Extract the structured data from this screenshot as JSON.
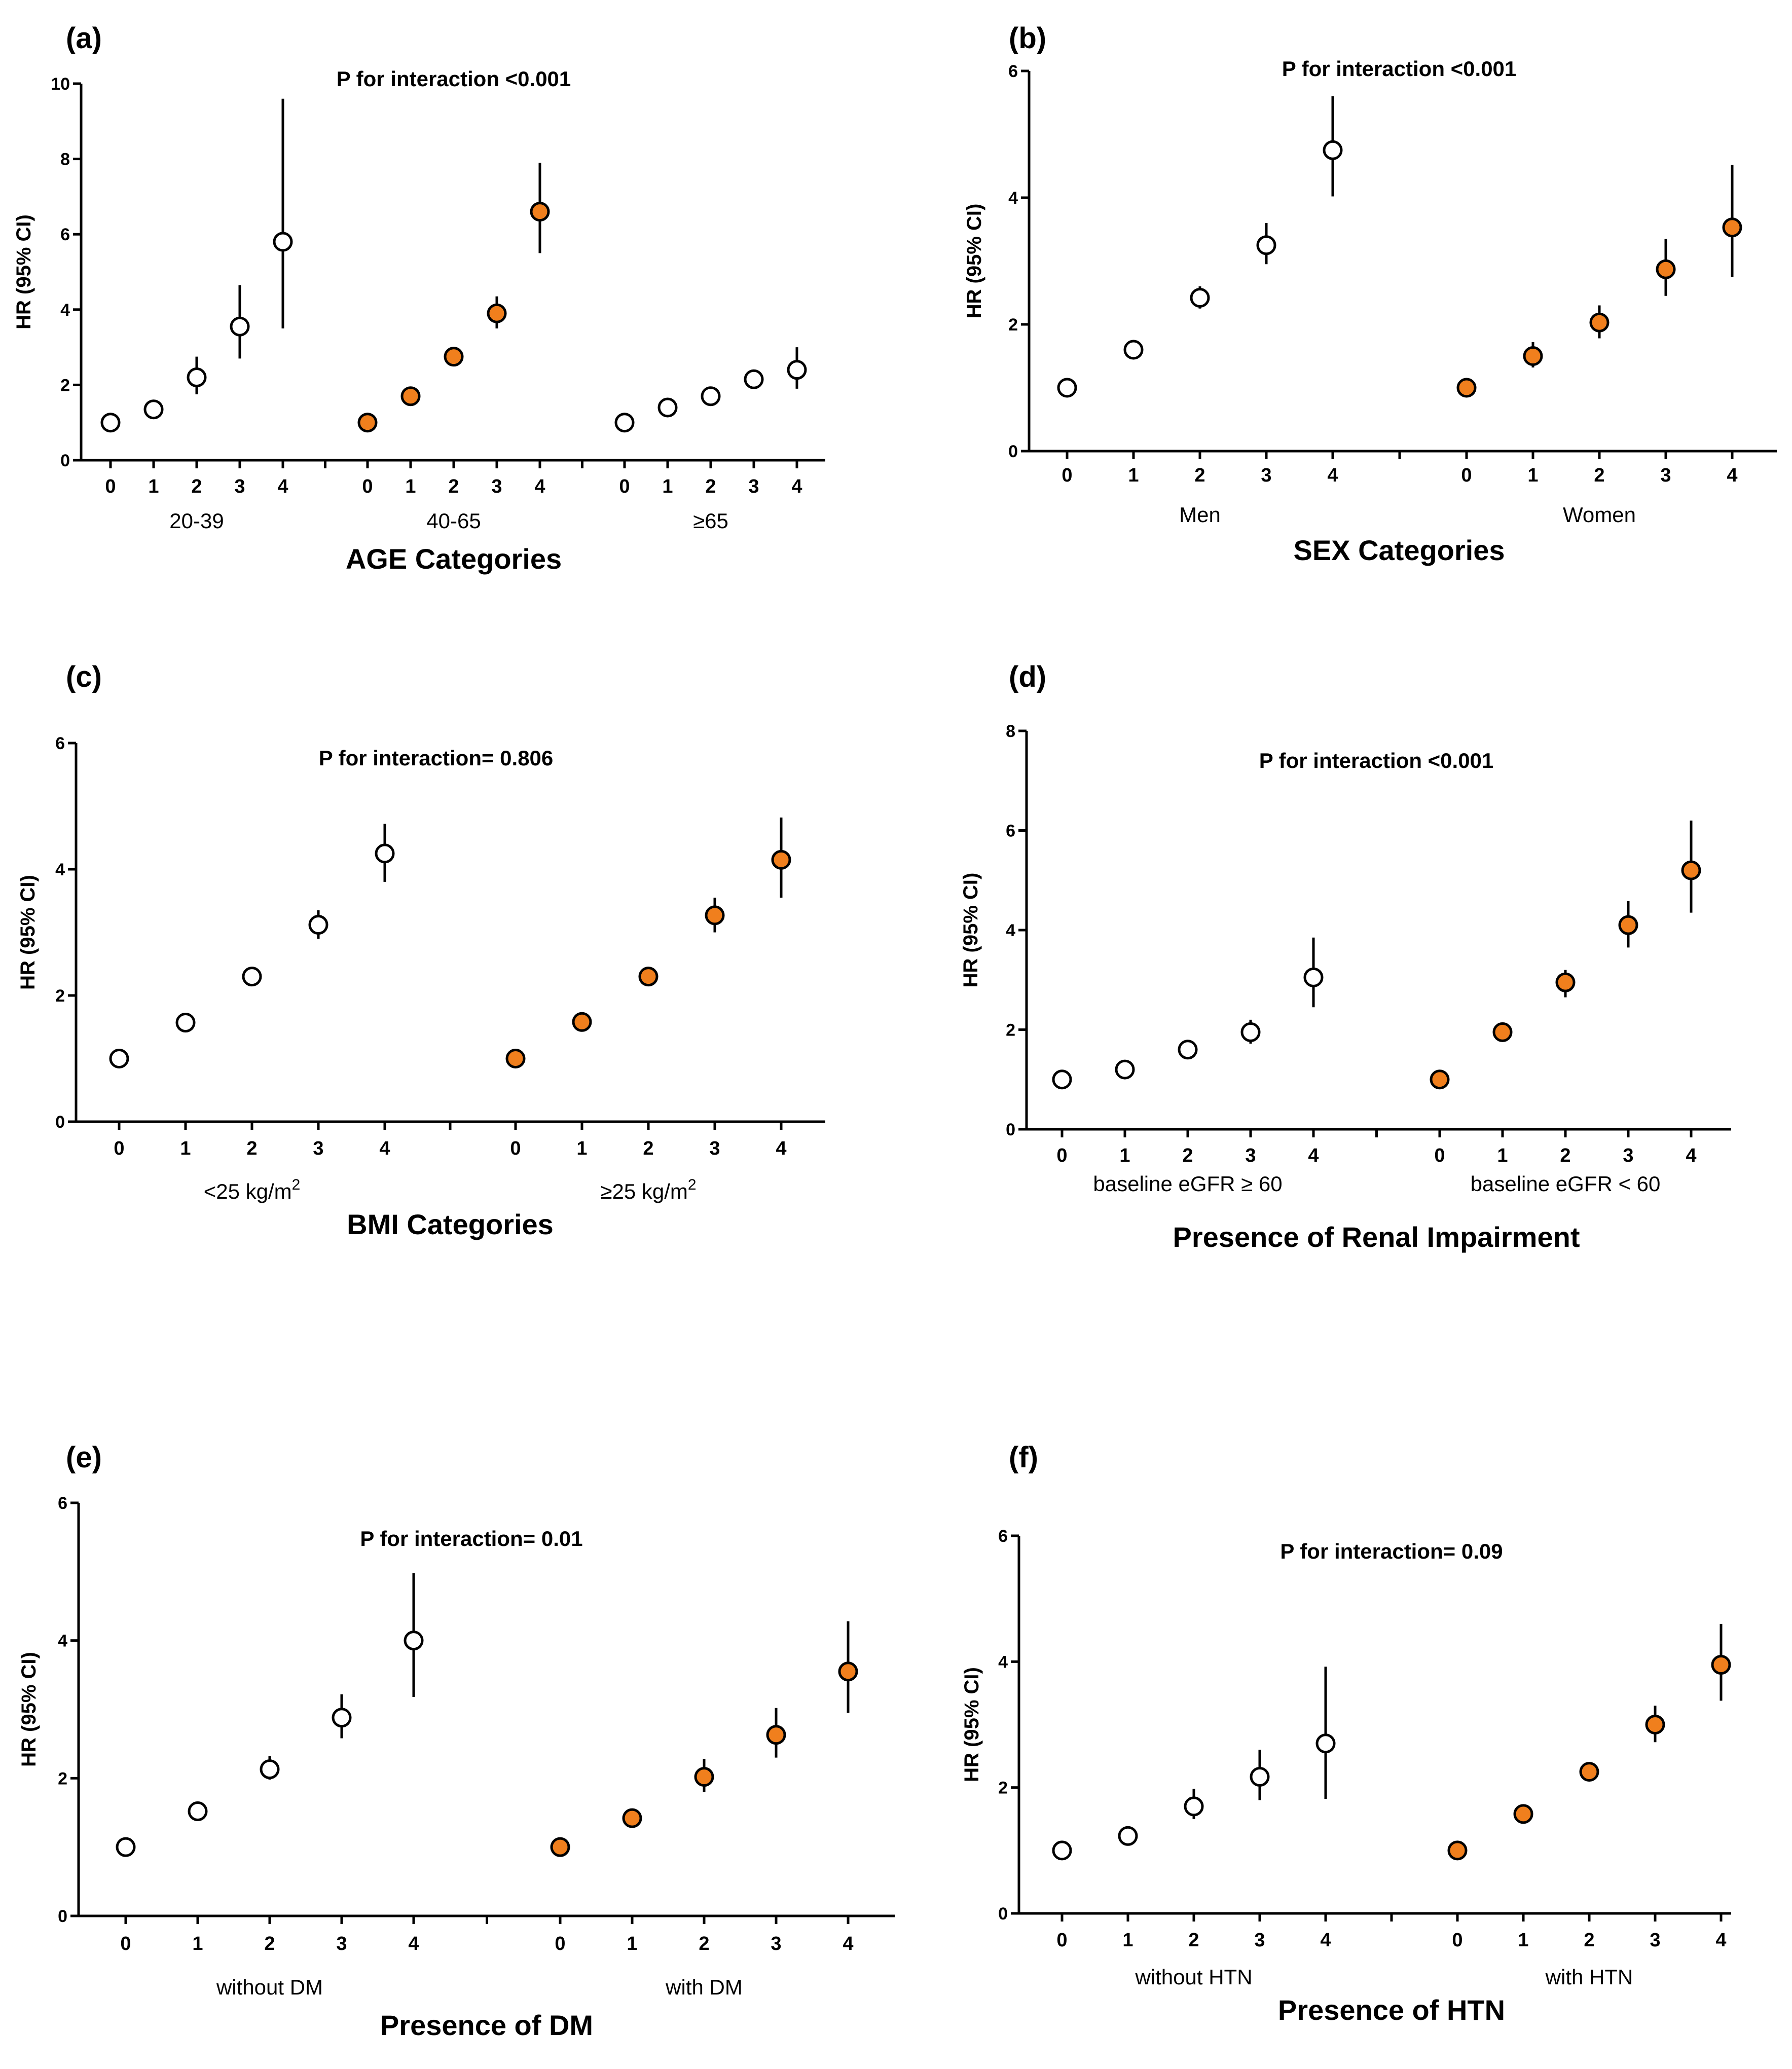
{
  "colors": {
    "filled": "#f07f1d",
    "open": "#ffffff",
    "stroke": "#000000"
  },
  "chart_data": [
    {
      "type": "scatter",
      "panel": "(a)",
      "annotation": "P for interaction <0.001",
      "ylabel": "HR (95% CI)",
      "xlabel": "AGE Categories",
      "ylim": [
        0,
        10
      ],
      "yticks": [
        0,
        2,
        4,
        6,
        8,
        10
      ],
      "categories": [
        "0",
        "1",
        "2",
        "3",
        "4"
      ],
      "series": [
        {
          "name": "20-39",
          "filled": false,
          "values": [
            1.0,
            1.35,
            2.2,
            3.55,
            5.8
          ],
          "lower": [
            1.0,
            1.2,
            1.75,
            2.7,
            3.5
          ],
          "upper": [
            1.0,
            1.55,
            2.75,
            4.65,
            9.6
          ]
        },
        {
          "name": "40-65",
          "filled": true,
          "values": [
            1.0,
            1.7,
            2.75,
            3.9,
            6.6
          ],
          "lower": [
            1.0,
            1.6,
            2.6,
            3.5,
            5.5
          ],
          "upper": [
            1.0,
            1.85,
            2.9,
            4.35,
            7.9
          ]
        },
        {
          "name": "≥65",
          "filled": false,
          "values": [
            1.0,
            1.4,
            1.7,
            2.15,
            2.4
          ],
          "lower": [
            1.0,
            1.3,
            1.6,
            1.95,
            1.9
          ],
          "upper": [
            1.0,
            1.5,
            1.85,
            2.4,
            3.0
          ]
        }
      ]
    },
    {
      "type": "scatter",
      "panel": "(b)",
      "annotation": "P for interaction <0.001",
      "ylabel": "HR (95% CI)",
      "xlabel": "SEX Categories",
      "ylim": [
        0,
        6
      ],
      "yticks": [
        0,
        2,
        4,
        6
      ],
      "categories": [
        "0",
        "1",
        "2",
        "3",
        "4"
      ],
      "series": [
        {
          "name": "Men",
          "filled": false,
          "values": [
            1.0,
            1.6,
            2.42,
            3.25,
            4.75
          ],
          "lower": [
            1.0,
            1.5,
            2.25,
            2.95,
            4.02
          ],
          "upper": [
            1.0,
            1.7,
            2.6,
            3.6,
            5.6
          ]
        },
        {
          "name": "Women",
          "filled": true,
          "values": [
            1.0,
            1.5,
            2.03,
            2.87,
            3.53
          ],
          "lower": [
            1.0,
            1.32,
            1.78,
            2.45,
            2.75
          ],
          "upper": [
            1.0,
            1.72,
            2.3,
            3.35,
            4.52
          ]
        }
      ]
    },
    {
      "type": "scatter",
      "panel": "(c)",
      "annotation": "P for interaction= 0.806",
      "ylabel": "HR (95% CI)",
      "xlabel": "BMI Categories",
      "ylim": [
        0,
        6
      ],
      "yticks": [
        0,
        2,
        4,
        6
      ],
      "categories": [
        "0",
        "1",
        "2",
        "3",
        "4"
      ],
      "series": [
        {
          "name": "<25 kg/m2",
          "filled": false,
          "values": [
            1.0,
            1.57,
            2.3,
            3.12,
            4.25
          ],
          "lower": [
            1.0,
            1.5,
            2.2,
            2.9,
            3.8
          ],
          "upper": [
            1.0,
            1.65,
            2.4,
            3.35,
            4.72
          ]
        },
        {
          "name": "≥25 kg/m2",
          "filled": true,
          "values": [
            1.0,
            1.58,
            2.3,
            3.27,
            4.15
          ],
          "lower": [
            1.0,
            1.5,
            2.15,
            3.0,
            3.55
          ],
          "upper": [
            1.0,
            1.68,
            2.42,
            3.55,
            4.82
          ]
        }
      ]
    },
    {
      "type": "scatter",
      "panel": "(d)",
      "annotation": "P for interaction <0.001",
      "ylabel": "HR (95% CI)",
      "xlabel": "Presence of Renal Impairment",
      "ylim": [
        0,
        8
      ],
      "yticks": [
        0,
        2,
        4,
        6,
        8
      ],
      "categories": [
        "0",
        "1",
        "2",
        "3",
        "4"
      ],
      "series": [
        {
          "name": "baseline eGFR ≥ 60",
          "filled": false,
          "values": [
            1.0,
            1.2,
            1.6,
            1.95,
            3.05
          ],
          "lower": [
            1.0,
            1.1,
            1.48,
            1.72,
            2.45
          ],
          "upper": [
            1.0,
            1.32,
            1.75,
            2.2,
            3.85
          ]
        },
        {
          "name": "baseline eGFR < 60",
          "filled": true,
          "values": [
            1.0,
            1.95,
            2.95,
            4.1,
            5.2
          ],
          "lower": [
            1.0,
            1.85,
            2.65,
            3.65,
            4.35
          ],
          "upper": [
            1.0,
            2.1,
            3.2,
            4.58,
            6.2
          ]
        }
      ]
    },
    {
      "type": "scatter",
      "panel": "(e)",
      "annotation": "P for interaction= 0.01",
      "ylabel": "HR (95% CI)",
      "xlabel": "Presence of DM",
      "ylim": [
        0,
        6
      ],
      "yticks": [
        0,
        2,
        4,
        6
      ],
      "categories": [
        "0",
        "1",
        "2",
        "3",
        "4"
      ],
      "series": [
        {
          "name": "without DM",
          "filled": false,
          "values": [
            1.0,
            1.52,
            2.13,
            2.88,
            4.0
          ],
          "lower": [
            1.0,
            1.45,
            1.98,
            2.58,
            3.18
          ],
          "upper": [
            1.0,
            1.6,
            2.32,
            3.22,
            4.98
          ]
        },
        {
          "name": "with DM",
          "filled": true,
          "values": [
            1.0,
            1.42,
            2.02,
            2.63,
            3.55
          ],
          "lower": [
            1.0,
            1.3,
            1.8,
            2.3,
            2.95
          ],
          "upper": [
            1.0,
            1.55,
            2.28,
            3.02,
            4.28
          ]
        }
      ]
    },
    {
      "type": "scatter",
      "panel": "(f)",
      "annotation": "P for interaction= 0.09",
      "ylabel": "HR (95% CI)",
      "xlabel": "Presence of HTN",
      "ylim": [
        0,
        6
      ],
      "yticks": [
        0,
        2,
        4,
        6
      ],
      "categories": [
        "0",
        "1",
        "2",
        "3",
        "4"
      ],
      "series": [
        {
          "name": "without HTN",
          "filled": false,
          "values": [
            1.0,
            1.23,
            1.7,
            2.17,
            2.7
          ],
          "lower": [
            1.0,
            1.15,
            1.5,
            1.8,
            1.82
          ],
          "upper": [
            1.0,
            1.32,
            1.98,
            2.6,
            3.92
          ]
        },
        {
          "name": "with HTN",
          "filled": true,
          "values": [
            1.0,
            1.58,
            2.25,
            3.0,
            3.95
          ],
          "lower": [
            1.0,
            1.5,
            2.1,
            2.72,
            3.38
          ],
          "upper": [
            1.0,
            1.68,
            2.4,
            3.3,
            4.6
          ]
        }
      ]
    }
  ]
}
